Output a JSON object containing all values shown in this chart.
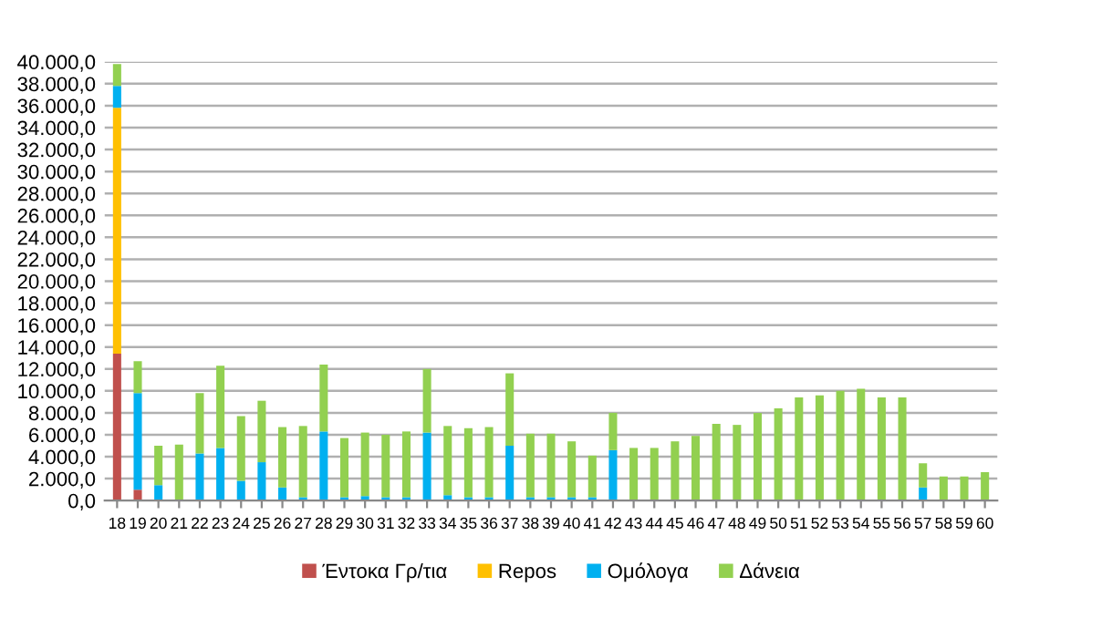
{
  "chart_data": {
    "type": "bar",
    "stacked": true,
    "legend": "bottom",
    "grid": "y",
    "categories": [
      "18",
      "19",
      "20",
      "21",
      "22",
      "23",
      "24",
      "25",
      "26",
      "27",
      "28",
      "29",
      "30",
      "31",
      "32",
      "33",
      "34",
      "35",
      "36",
      "37",
      "38",
      "39",
      "40",
      "41",
      "42",
      "43",
      "44",
      "45",
      "46",
      "47",
      "48",
      "49",
      "50",
      "51",
      "52",
      "53",
      "54",
      "55",
      "56",
      "57",
      "58",
      "59",
      "60"
    ],
    "series": [
      {
        "name": "Έντοκα Γρ/τια",
        "color": "#c0504d",
        "values": [
          13400,
          1000,
          0,
          0,
          0,
          0,
          0,
          0,
          0,
          0,
          0,
          0,
          0,
          0,
          0,
          0,
          0,
          0,
          0,
          0,
          0,
          0,
          0,
          0,
          0,
          0,
          0,
          0,
          0,
          0,
          0,
          0,
          0,
          0,
          0,
          0,
          0,
          0,
          0,
          0,
          0,
          0,
          0
        ]
      },
      {
        "name": "Repos",
        "color": "#ffc000",
        "values": [
          22400,
          0,
          0,
          0,
          0,
          0,
          0,
          0,
          0,
          0,
          0,
          0,
          0,
          0,
          0,
          0,
          0,
          0,
          0,
          0,
          0,
          0,
          0,
          0,
          0,
          0,
          0,
          0,
          0,
          0,
          0,
          0,
          0,
          0,
          0,
          0,
          0,
          0,
          0,
          0,
          0,
          0,
          0
        ]
      },
      {
        "name": "Ομόλογα",
        "color": "#00b0f0",
        "values": [
          2000,
          8800,
          1400,
          0,
          4300,
          4800,
          1800,
          3500,
          1200,
          300,
          6300,
          300,
          400,
          300,
          300,
          6200,
          500,
          300,
          300,
          5000,
          300,
          300,
          300,
          300,
          4600,
          0,
          0,
          0,
          0,
          0,
          0,
          0,
          0,
          0,
          0,
          0,
          0,
          0,
          0,
          1200,
          0,
          0,
          0
        ]
      },
      {
        "name": "Δάνεια",
        "color": "#92d050",
        "values": [
          2000,
          2900,
          3600,
          5100,
          5500,
          7500,
          5900,
          5600,
          5500,
          6500,
          6100,
          5400,
          5800,
          5700,
          6000,
          5800,
          6300,
          6300,
          6400,
          6600,
          5800,
          5800,
          5100,
          3800,
          3400,
          4800,
          4800,
          5400,
          5900,
          7000,
          6900,
          8000,
          8400,
          9400,
          9600,
          10000,
          10200,
          9400,
          9400,
          2200,
          2200,
          2200,
          2600
        ]
      }
    ],
    "ylim": [
      0,
      40000
    ],
    "yticks": [
      {
        "value": 0,
        "label": "0,0"
      },
      {
        "value": 2000,
        "label": "2.000,0"
      },
      {
        "value": 4000,
        "label": "4.000,0"
      },
      {
        "value": 6000,
        "label": "6.000,0"
      },
      {
        "value": 8000,
        "label": "8.000,0"
      },
      {
        "value": 10000,
        "label": "10.000,0"
      },
      {
        "value": 12000,
        "label": "12.000,0"
      },
      {
        "value": 14000,
        "label": "14.000,0"
      },
      {
        "value": 16000,
        "label": "16.000,0"
      },
      {
        "value": 18000,
        "label": "18.000,0"
      },
      {
        "value": 20000,
        "label": "20.000,0"
      },
      {
        "value": 22000,
        "label": "22.000,0"
      },
      {
        "value": 24000,
        "label": "24.000,0"
      },
      {
        "value": 26000,
        "label": "26.000,0"
      },
      {
        "value": 28000,
        "label": "28.000,0"
      },
      {
        "value": 30000,
        "label": "30.000,0"
      },
      {
        "value": 32000,
        "label": "32.000,0"
      },
      {
        "value": 34000,
        "label": "34.000,0"
      },
      {
        "value": 36000,
        "label": "36.000,0"
      },
      {
        "value": 38000,
        "label": "38.000,0"
      },
      {
        "value": 40000,
        "label": "40.000,0"
      }
    ]
  }
}
